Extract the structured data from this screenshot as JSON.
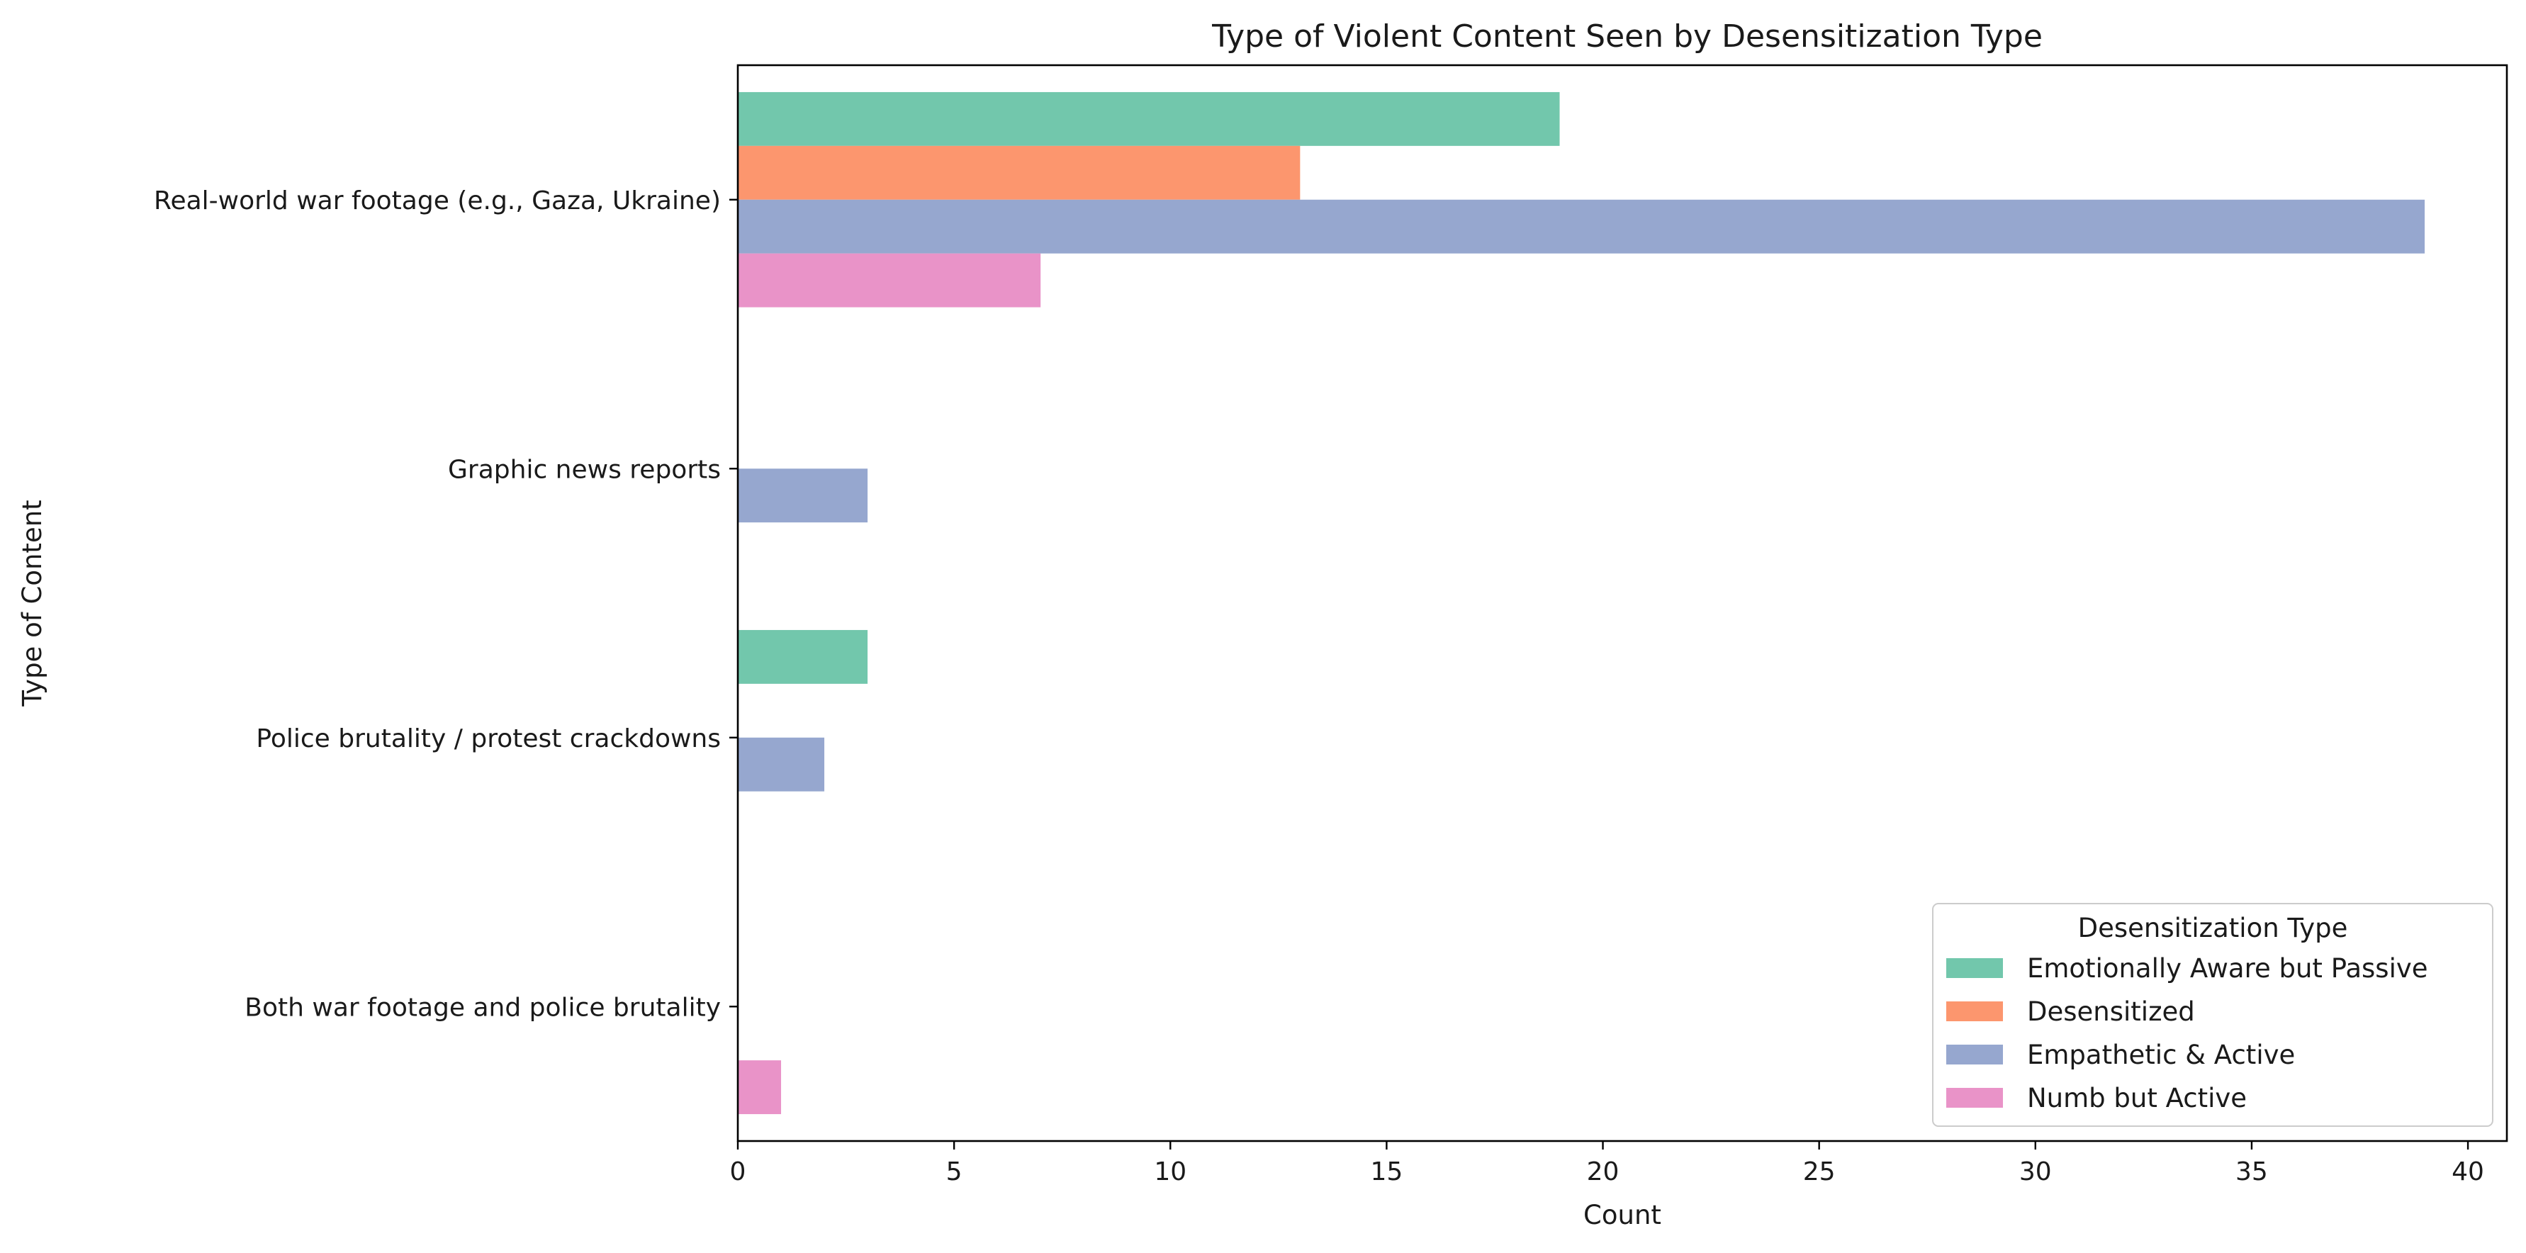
{
  "chart_data": {
    "type": "bar",
    "orientation": "horizontal",
    "title": "Type of Violent Content Seen by Desensitization Type",
    "xlabel": "Count",
    "ylabel": "Type of Content",
    "xlim": [
      0,
      40.9
    ],
    "xticks": [
      0,
      5,
      10,
      15,
      20,
      25,
      30,
      35,
      40
    ],
    "grid": false,
    "categories": [
      "Real-world war footage (e.g., Gaza, Ukraine)",
      "Graphic news reports",
      "Police brutality / protest crackdowns",
      "Both war footage and police brutality"
    ],
    "series": [
      {
        "name": "Emotionally Aware but Passive",
        "color": "#66c2a5",
        "values": [
          19,
          0,
          3,
          0
        ]
      },
      {
        "name": "Desensitized",
        "color": "#fc8d62",
        "values": [
          13,
          0,
          0,
          0
        ]
      },
      {
        "name": "Empathetic & Active",
        "color": "#8da0cb",
        "values": [
          39,
          3,
          2,
          0
        ]
      },
      {
        "name": "Numb but Active",
        "color": "#e78ac3",
        "values": [
          7,
          0,
          0,
          1
        ]
      }
    ],
    "legend": {
      "title": "Desensitization Type",
      "position": "lower-right"
    }
  }
}
